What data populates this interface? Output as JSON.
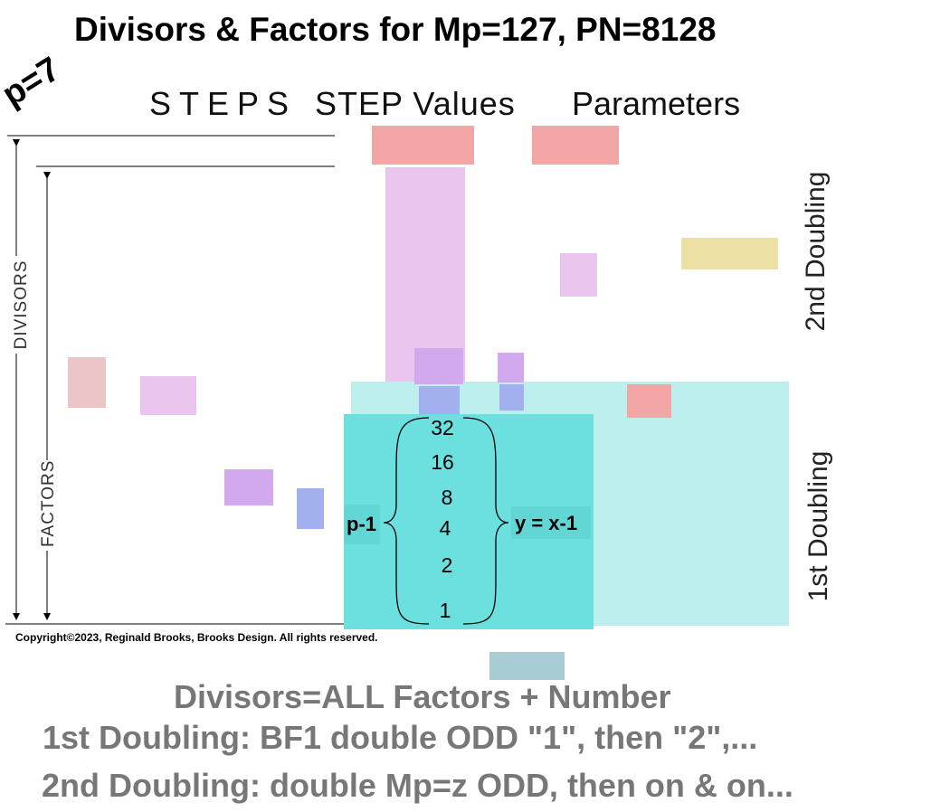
{
  "title": "Divisors & Factors for Mp=127, PN=8128",
  "p_label": "p=7",
  "headers": {
    "steps": "STEPS",
    "step_values": "STEP Values",
    "parameters": "Parameters"
  },
  "side_labels": {
    "second_doubling": "2nd Doubling",
    "first_doubling": "1st Doubling",
    "divisors": "DIVISORS",
    "factors": "FACTORS"
  },
  "factor_values": [
    "32",
    "16",
    "8",
    "4",
    "2",
    "1"
  ],
  "brace_left_label": "p-1",
  "brace_right_label": "y = x-1",
  "copyright": "Copyright©2023, Reginald Brooks, Brooks Design. All rights reserved.",
  "footer": {
    "line1": "Divisors=ALL Factors + Number",
    "line2": "1st Doubling: BF1 double ODD \"1\", then \"2\",...",
    "line3": "2nd Doubling: double Mp=z ODD, then on & on..."
  },
  "colors": {
    "salmon": "#f2a6a6",
    "pink_pale": "#ecc6c6",
    "lavender": "#eac6ef",
    "purple": "#d2a8ef",
    "blue": "#a2b0ee",
    "yellow": "#ece0a4",
    "teal_light": "#bcefee",
    "teal": "#6cdfdf",
    "gray_blue": "#a8ccd4"
  }
}
